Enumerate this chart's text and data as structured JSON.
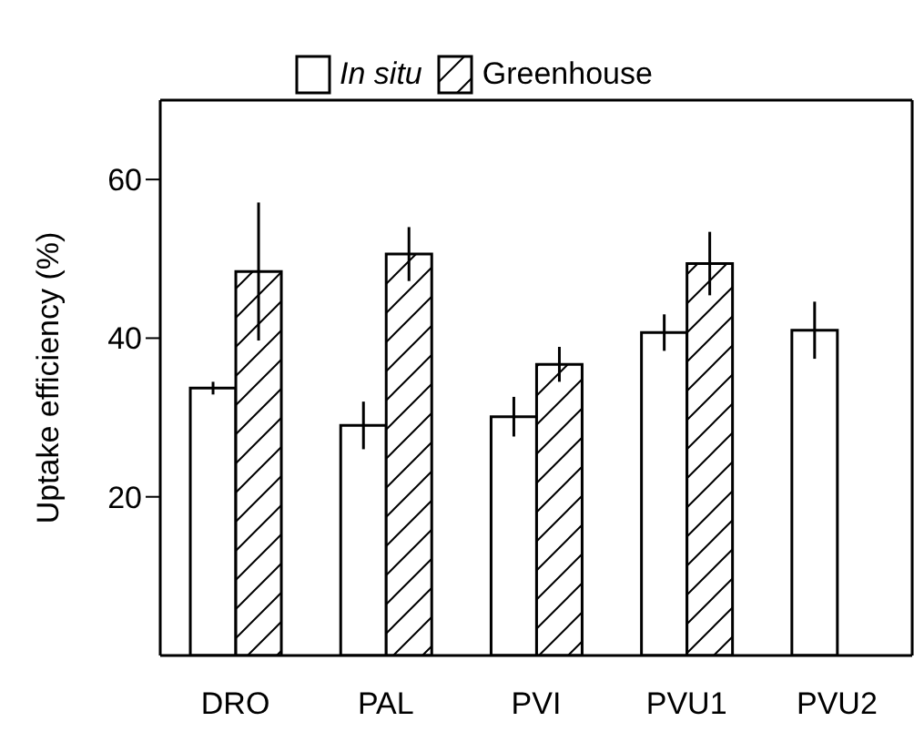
{
  "chart_data": {
    "type": "bar",
    "ylabel": "Uptake efficiency (%)",
    "categories": [
      "DRO",
      "PAL",
      "PVI",
      "PVU1",
      "PVU2"
    ],
    "series": [
      {
        "name": "In situ",
        "color": "#000000",
        "values": [
          33.7,
          29.0,
          30.1,
          40.7,
          41.0
        ],
        "errors": [
          0.8,
          3.0,
          2.5,
          2.3,
          3.6
        ]
      },
      {
        "name": "Greenhouse",
        "color": "#000000",
        "values": [
          48.4,
          50.6,
          36.7,
          49.4,
          null
        ],
        "errors": [
          8.7,
          3.4,
          2.2,
          4.0,
          null
        ]
      }
    ],
    "ylim": [
      0,
      70
    ],
    "yticks": [
      20,
      40,
      60
    ],
    "grid": false,
    "legend": "top"
  }
}
